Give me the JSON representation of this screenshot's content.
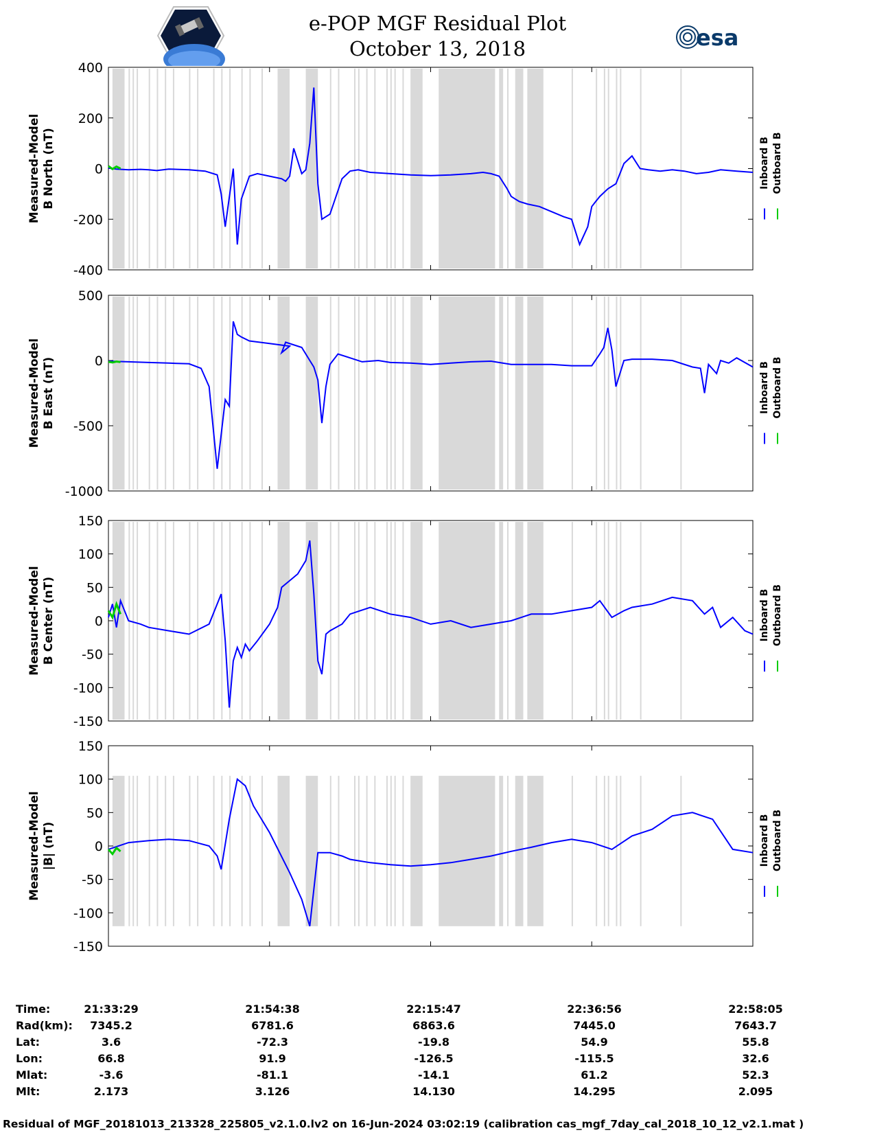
{
  "header": {
    "title": "e-POP MGF Residual Plot",
    "date": "October 13, 2018",
    "logo_left": "CASSIOPE",
    "logo_right": "esa"
  },
  "colors": {
    "inboard": "#0000ff",
    "outboard": "#00cc00",
    "gap": "#d9d9d9"
  },
  "chart_data": [
    {
      "type": "line",
      "ylabel": [
        "Measured-Model",
        "B North (nT)"
      ],
      "ylim": [
        -400,
        400
      ],
      "yticks": [
        400,
        200,
        0,
        -200,
        -400
      ],
      "legend": [
        "Inboard B",
        "Outboard B"
      ],
      "series": [
        {
          "name": "Inboard B",
          "x": [
            0,
            2,
            5,
            8,
            10,
            12,
            15,
            20,
            24,
            27,
            28,
            29,
            31,
            32,
            33,
            35,
            37,
            40,
            43,
            44,
            45,
            46,
            48,
            49,
            50,
            51,
            52,
            53,
            55,
            58,
            60,
            62,
            65,
            70,
            75,
            80,
            85,
            90,
            93,
            95,
            97,
            99,
            100,
            101,
            102,
            104,
            107,
            110,
            113,
            115,
            117,
            119,
            120,
            121,
            122,
            124,
            126,
            128,
            130,
            132,
            134,
            137,
            140,
            143,
            146,
            149,
            152,
            156,
            160
          ],
          "values": [
            2,
            -2,
            -5,
            -3,
            -5,
            -8,
            -2,
            -5,
            -10,
            -25,
            -100,
            -230,
            0,
            -300,
            -120,
            -30,
            -20,
            -30,
            -40,
            -50,
            -30,
            80,
            -20,
            -5,
            100,
            320,
            -60,
            -200,
            -180,
            -40,
            -10,
            -5,
            -15,
            -20,
            -25,
            -28,
            -25,
            -20,
            -15,
            -20,
            -30,
            -80,
            -110,
            -120,
            -130,
            -140,
            -150,
            -170,
            -190,
            -200,
            -300,
            -230,
            -150,
            -130,
            -110,
            -80,
            -60,
            20,
            50,
            0,
            -5,
            -10,
            -5,
            -10,
            -20,
            -15,
            -5,
            -10,
            -15
          ]
        },
        {
          "name": "Outboard B",
          "x": [
            0,
            1,
            2,
            3
          ],
          "values": [
            10,
            -2,
            8,
            0
          ]
        }
      ]
    },
    {
      "type": "line",
      "ylabel": [
        "Measured-Model",
        "B East (nT)"
      ],
      "ylim": [
        -1000,
        500
      ],
      "yticks": [
        500,
        0,
        -500,
        -1000
      ],
      "legend": [
        "Inboard B",
        "Outboard B"
      ],
      "series": [
        {
          "name": "Inboard B",
          "x": [
            0,
            5,
            10,
            15,
            20,
            23,
            25,
            27,
            29,
            30,
            31,
            32,
            33,
            35,
            40,
            45,
            43,
            44,
            48,
            50,
            51,
            52,
            53,
            54,
            55,
            57,
            60,
            63,
            67,
            70,
            75,
            80,
            85,
            90,
            95,
            100,
            105,
            110,
            115,
            120,
            122,
            123,
            124,
            125,
            126,
            127,
            128,
            130,
            135,
            140,
            145,
            147,
            148,
            149,
            151,
            152,
            154,
            156,
            160
          ],
          "values": [
            -5,
            -10,
            -15,
            -20,
            -25,
            -60,
            -200,
            -830,
            -300,
            -350,
            300,
            200,
            180,
            150,
            130,
            110,
            60,
            140,
            100,
            0,
            -50,
            -150,
            -480,
            -200,
            -30,
            50,
            20,
            -10,
            0,
            -15,
            -20,
            -30,
            -20,
            -10,
            -5,
            -30,
            -30,
            -30,
            -40,
            -40,
            50,
            100,
            250,
            80,
            -200,
            -100,
            0,
            10,
            10,
            0,
            -50,
            -60,
            -250,
            -30,
            -100,
            0,
            -20,
            20,
            -50
          ]
        },
        {
          "name": "Outboard B",
          "x": [
            0,
            1,
            2,
            3
          ],
          "values": [
            -10,
            -15,
            -8,
            -12
          ]
        }
      ]
    },
    {
      "type": "line",
      "ylabel": [
        "Measured-Model",
        "B Center (nT)"
      ],
      "ylim": [
        -150,
        150
      ],
      "yticks": [
        150,
        100,
        50,
        0,
        -50,
        -100,
        -150
      ],
      "legend": [
        "Inboard B",
        "Outboard B"
      ],
      "series": [
        {
          "name": "Inboard B",
          "x": [
            0,
            1,
            2,
            3,
            5,
            8,
            10,
            15,
            20,
            25,
            28,
            29,
            30,
            31,
            32,
            33,
            34,
            35,
            37,
            40,
            42,
            43,
            45,
            47,
            49,
            50,
            51,
            52,
            53,
            54,
            55,
            58,
            60,
            65,
            70,
            75,
            80,
            85,
            90,
            95,
            100,
            105,
            110,
            115,
            120,
            122,
            125,
            128,
            130,
            135,
            140,
            145,
            148,
            150,
            152,
            155,
            158,
            160
          ],
          "values": [
            5,
            25,
            -10,
            30,
            0,
            -5,
            -10,
            -15,
            -20,
            -5,
            40,
            -30,
            -130,
            -60,
            -40,
            -55,
            -35,
            -45,
            -30,
            -5,
            20,
            50,
            60,
            70,
            90,
            120,
            40,
            -60,
            -80,
            -20,
            -15,
            -5,
            10,
            20,
            10,
            5,
            -5,
            0,
            -10,
            -5,
            0,
            10,
            10,
            15,
            20,
            30,
            5,
            15,
            20,
            25,
            35,
            30,
            10,
            20,
            -10,
            5,
            -15,
            -20
          ]
        },
        {
          "name": "Outboard B",
          "x": [
            0,
            1,
            2,
            3
          ],
          "values": [
            15,
            5,
            25,
            10
          ]
        }
      ]
    },
    {
      "type": "line",
      "ylabel": [
        "Measured-Model",
        "|B| (nT)"
      ],
      "ylim": [
        -150,
        150
      ],
      "yticks": [
        150,
        100,
        50,
        0,
        -50,
        -100,
        -150
      ],
      "legend": [
        "Inboard B",
        "Outboard B"
      ],
      "series": [
        {
          "name": "Inboard B",
          "x": [
            0,
            5,
            10,
            15,
            20,
            25,
            27,
            28,
            30,
            32,
            34,
            36,
            40,
            45,
            48,
            50,
            52,
            55,
            58,
            60,
            65,
            70,
            75,
            80,
            85,
            90,
            95,
            100,
            105,
            110,
            115,
            120,
            125,
            130,
            135,
            140,
            145,
            150,
            155,
            160
          ],
          "values": [
            -5,
            5,
            8,
            10,
            8,
            0,
            -15,
            -35,
            40,
            100,
            90,
            60,
            20,
            -40,
            -80,
            -120,
            -10,
            -10,
            -15,
            -20,
            -25,
            -28,
            -30,
            -28,
            -25,
            -20,
            -15,
            -8,
            -2,
            5,
            10,
            5,
            -5,
            15,
            25,
            45,
            50,
            40,
            -5,
            -10
          ]
        },
        {
          "name": "Outboard B",
          "x": [
            0,
            1,
            2,
            3
          ],
          "values": [
            -5,
            -12,
            -3,
            -8
          ]
        }
      ]
    }
  ],
  "gaps": [
    [
      1,
      4
    ],
    [
      5,
      5.3
    ],
    [
      6,
      6.2
    ],
    [
      7,
      7.2
    ],
    [
      10,
      10.2
    ],
    [
      12,
      12.2
    ],
    [
      14,
      14.2
    ],
    [
      16,
      16.2
    ],
    [
      20,
      20.2
    ],
    [
      22,
      22.2
    ],
    [
      26,
      26.2
    ],
    [
      28,
      28.2
    ],
    [
      30,
      30.2
    ],
    [
      33,
      33.2
    ],
    [
      35,
      35.2
    ],
    [
      38,
      38.2
    ],
    [
      42,
      45
    ],
    [
      49,
      52
    ],
    [
      55,
      55.2
    ],
    [
      57,
      57.2
    ],
    [
      61,
      61.2
    ],
    [
      62,
      62.3
    ],
    [
      64,
      64.2
    ],
    [
      66,
      66.2
    ],
    [
      69,
      69.3
    ],
    [
      70,
      70.2
    ],
    [
      71,
      71.2
    ],
    [
      73,
      73.2
    ],
    [
      75,
      78
    ],
    [
      82,
      96
    ],
    [
      97,
      98
    ],
    [
      99,
      99.3
    ],
    [
      101,
      103
    ],
    [
      104,
      108
    ],
    [
      115,
      115.2
    ],
    [
      121,
      121.2
    ],
    [
      123,
      123.2
    ],
    [
      124,
      124.2
    ],
    [
      126,
      126.2
    ],
    [
      127,
      127.2
    ],
    [
      132,
      132.2
    ],
    [
      142,
      142.2
    ]
  ],
  "xmax": 160,
  "table": {
    "row_labels": [
      "Time:",
      "Rad(km):",
      "Lat:",
      "Lon:",
      "Mlat:",
      "Mlt:"
    ],
    "columns": [
      [
        "21:33:29",
        "7345.2",
        "3.6",
        "66.8",
        "-3.6",
        "2.173"
      ],
      [
        "21:54:38",
        "6781.6",
        "-72.3",
        "91.9",
        "-81.1",
        "3.126"
      ],
      [
        "22:15:47",
        "6863.6",
        "-19.8",
        "-126.5",
        "-14.1",
        "14.130"
      ],
      [
        "22:36:56",
        "7445.0",
        "54.9",
        "-115.5",
        "61.2",
        "14.295"
      ],
      [
        "22:58:05",
        "7643.7",
        "55.8",
        "32.6",
        "52.3",
        "2.095"
      ]
    ]
  },
  "footer": "Residual of MGF_20181013_213328_225805_v2.1.0.lv2 on 16-Jun-2024 03:02:19 (calibration cas_mgf_7day_cal_2018_10_12_v2.1.mat )"
}
